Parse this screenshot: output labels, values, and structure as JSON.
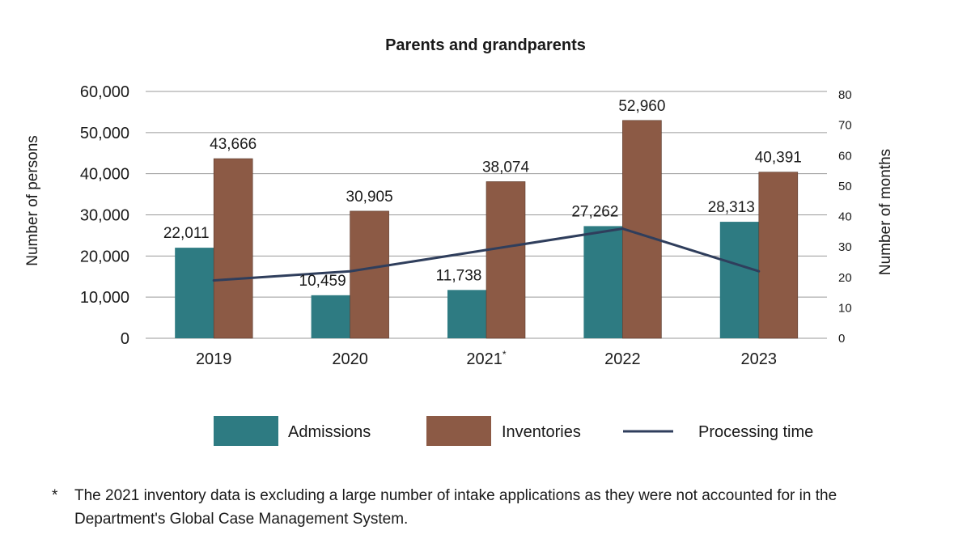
{
  "chart_data": {
    "type": "bar",
    "title": "Parents and grandparents",
    "categories": [
      "2019",
      "2020",
      "2021",
      "2022",
      "2023"
    ],
    "category_marks": [
      "",
      "",
      "*",
      "",
      ""
    ],
    "ylabel": "Number of persons",
    "y2label": "Number of months",
    "ylim": [
      0,
      60000
    ],
    "y2lim": [
      0,
      80
    ],
    "y_ticks": [
      "0",
      "10,000",
      "20,000",
      "30,000",
      "40,000",
      "50,000",
      "60,000"
    ],
    "y2_ticks": [
      "0",
      "10",
      "20",
      "30",
      "40",
      "50",
      "60",
      "70",
      "80"
    ],
    "grid": true,
    "legend_position": "bottom",
    "series": [
      {
        "name": "Admissions",
        "type": "bar",
        "axis": "left",
        "color": "#2e7b82",
        "values": [
          22011,
          10459,
          11738,
          27262,
          28313
        ],
        "labels": [
          "22,011",
          "10,459",
          "11,738",
          "27,262",
          "28,313"
        ]
      },
      {
        "name": "Inventories",
        "type": "bar",
        "axis": "left",
        "color": "#8c5a45",
        "values": [
          43666,
          30905,
          38074,
          52960,
          40391
        ],
        "labels": [
          "43,666",
          "30,905",
          "38,074",
          "52,960",
          "40,391"
        ]
      },
      {
        "name": "Processing time",
        "type": "line",
        "axis": "right",
        "color": "#2f3e5c",
        "values": [
          19,
          22,
          29,
          36,
          22
        ]
      }
    ]
  },
  "footnote": {
    "mark": "*",
    "text": "The 2021 inventory data is excluding a large number of intake applications as they were not accounted for in the Department's Global Case Management System."
  }
}
